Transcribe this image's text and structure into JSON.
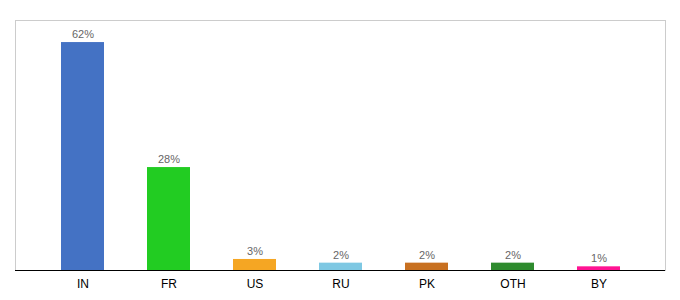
{
  "chart_data": {
    "type": "bar",
    "categories": [
      "IN",
      "FR",
      "US",
      "RU",
      "PK",
      "OTH",
      "BY"
    ],
    "values": [
      62,
      28,
      3,
      2,
      2,
      2,
      1
    ],
    "value_labels": [
      "62%",
      "28%",
      "3%",
      "2%",
      "2%",
      "2%",
      "1%"
    ],
    "colors": [
      "#4472c4",
      "#22cc22",
      "#f5a623",
      "#7ec8e3",
      "#c87020",
      "#2e8b2e",
      "#ff1493"
    ],
    "ylim": [
      0,
      68
    ],
    "data_labels": true,
    "tick_labels": "x",
    "grid": false
  }
}
